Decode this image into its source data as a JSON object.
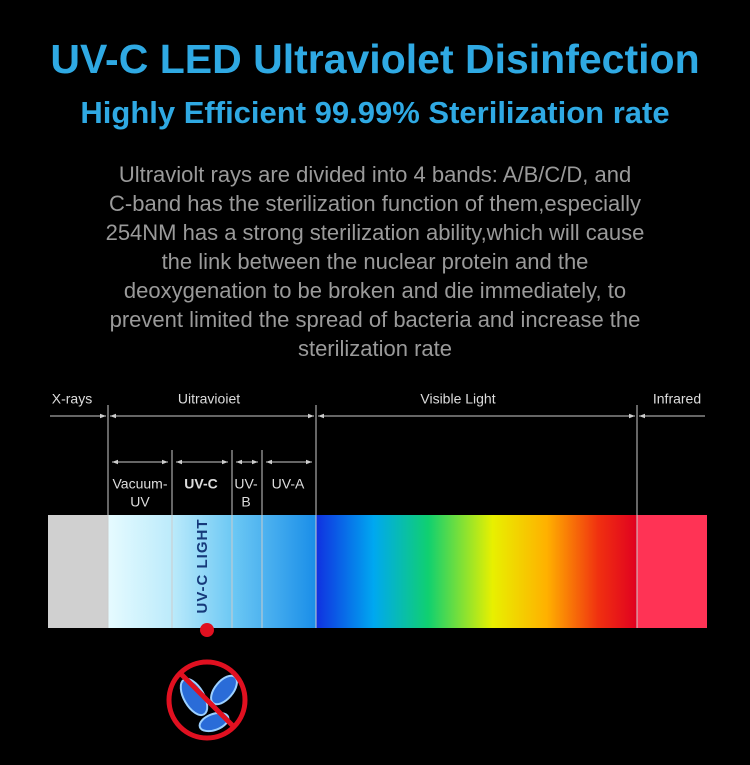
{
  "header": {
    "title": "UV-C LED Ultraviolet Disinfection",
    "subtitle": "Highly Efficient 99.99% Sterilization rate"
  },
  "description": {
    "lines": [
      "Ultraviolt rays are divided into 4 bands: A/B/C/D, and",
      "C-band has the sterilization function of them,especially",
      "254NM has a strong sterilization ability,which will cause",
      "the link between the nuclear protein and the",
      "deoxygenation to be broken and die immediately, to",
      "prevent limited the spread of bacteria and increase the",
      "sterilization rate"
    ]
  },
  "spectrum": {
    "regions": [
      "X-rays",
      "Uitravioiet",
      "Visible Light",
      "Infrared"
    ],
    "bands": [
      [
        "Vacuum-",
        "UV"
      ],
      [
        "UV-C"
      ],
      [
        "UV-",
        "B"
      ],
      [
        "UV-A"
      ]
    ],
    "highlight": "UV-C LIGHT"
  }
}
